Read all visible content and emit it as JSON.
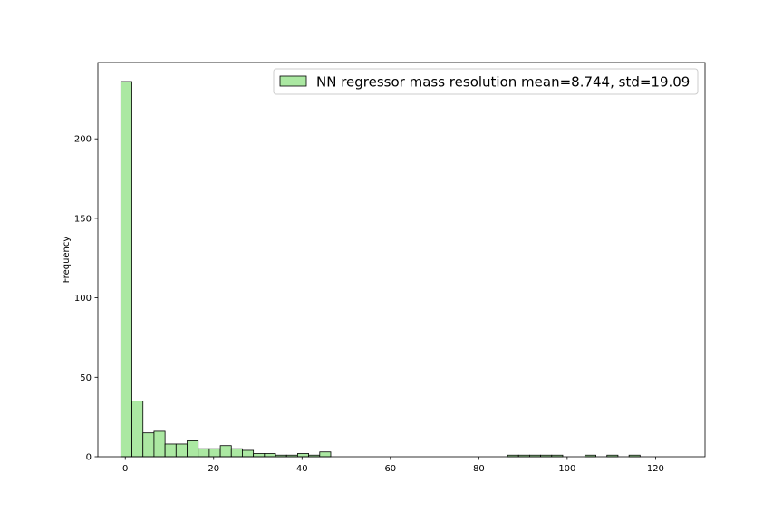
{
  "chart_data": {
    "type": "histogram",
    "title": "",
    "xlabel": "",
    "ylabel": "Frequency",
    "xlim": [
      -6.2,
      131.2
    ],
    "ylim": [
      0,
      248
    ],
    "xticks": [
      0,
      20,
      40,
      60,
      80,
      100,
      120
    ],
    "yticks": [
      0,
      50,
      100,
      150,
      200
    ],
    "grid": false,
    "legend_position": "top-right",
    "bar_color": "#abe8a2",
    "edge_color": "#000000",
    "bins": {
      "start": -1,
      "width": 2.5,
      "counts": [
        236,
        35,
        15,
        16,
        8,
        8,
        10,
        5,
        5,
        7,
        5,
        4,
        2,
        2,
        1,
        1,
        2,
        1,
        3,
        0,
        0,
        0,
        0,
        0,
        0,
        0,
        0,
        0,
        0,
        0,
        0,
        0,
        0,
        0,
        0,
        1,
        1,
        1,
        1,
        1,
        0,
        0,
        1,
        0,
        1,
        0,
        1,
        0,
        0,
        0,
        0,
        0,
        0,
        0,
        0,
        0,
        0,
        0,
        0,
        0,
        0
      ]
    },
    "series": [
      {
        "name": "NN regressor mass resolution mean=8.744, std=19.09"
      }
    ]
  }
}
